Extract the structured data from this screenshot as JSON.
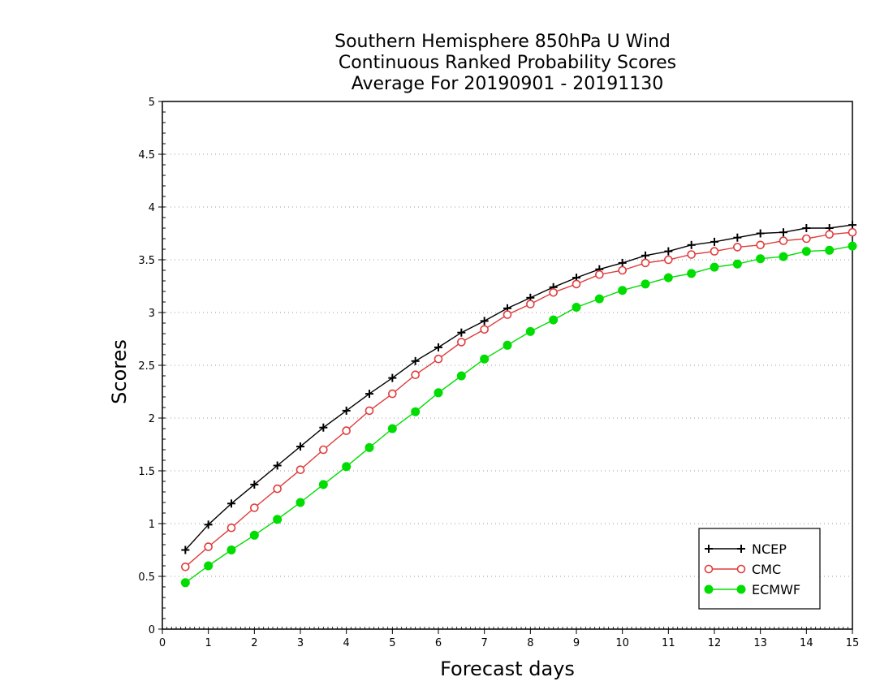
{
  "chart_data": {
    "type": "line",
    "title": [
      "Southern Hemisphere 850hPa U Wind",
      "Continuous Ranked Probability Scores",
      "Average For 20190901 - 20191130"
    ],
    "xlabel": "Forecast days",
    "ylabel": "Scores",
    "xlim": [
      0,
      15
    ],
    "ylim": [
      0,
      5
    ],
    "xticks": [
      "0",
      "1",
      "2",
      "3",
      "4",
      "5",
      "6",
      "7",
      "8",
      "9",
      "10",
      "11",
      "12",
      "13",
      "14",
      "15"
    ],
    "yticks": [
      "0",
      "0.5",
      "1",
      "1.5",
      "2",
      "2.5",
      "3",
      "3.5",
      "4",
      "4.5",
      "5"
    ],
    "grid": "horizontal dotted",
    "legend_position": "bottom-right",
    "x": [
      0.5,
      1,
      1.5,
      2,
      2.5,
      3,
      3.5,
      4,
      4.5,
      5,
      5.5,
      6,
      6.5,
      7,
      7.5,
      8,
      8.5,
      9,
      9.5,
      10,
      10.5,
      11,
      11.5,
      12,
      12.5,
      13,
      13.5,
      14,
      14.5,
      15
    ],
    "series": [
      {
        "name": "NCEP",
        "color": "#000000",
        "marker": "plus",
        "values": [
          0.75,
          0.99,
          1.19,
          1.37,
          1.55,
          1.73,
          1.91,
          2.07,
          2.23,
          2.38,
          2.54,
          2.67,
          2.81,
          2.92,
          3.04,
          3.14,
          3.24,
          3.33,
          3.41,
          3.47,
          3.54,
          3.58,
          3.64,
          3.67,
          3.71,
          3.75,
          3.76,
          3.8,
          3.8,
          3.83
        ]
      },
      {
        "name": "CMC",
        "color": "#e03c3c",
        "marker": "open-circle",
        "values": [
          0.59,
          0.78,
          0.96,
          1.15,
          1.33,
          1.51,
          1.7,
          1.88,
          2.07,
          2.23,
          2.41,
          2.56,
          2.72,
          2.84,
          2.98,
          3.08,
          3.19,
          3.27,
          3.36,
          3.4,
          3.47,
          3.5,
          3.55,
          3.58,
          3.62,
          3.64,
          3.68,
          3.7,
          3.74,
          3.76
        ]
      },
      {
        "name": "ECMWF",
        "color": "#00dd00",
        "marker": "filled-circle",
        "values": [
          0.44,
          0.6,
          0.75,
          0.89,
          1.04,
          1.2,
          1.37,
          1.54,
          1.72,
          1.9,
          2.06,
          2.24,
          2.4,
          2.56,
          2.69,
          2.82,
          2.93,
          3.05,
          3.13,
          3.21,
          3.27,
          3.33,
          3.37,
          3.43,
          3.46,
          3.51,
          3.53,
          3.58,
          3.59,
          3.63
        ]
      }
    ]
  }
}
